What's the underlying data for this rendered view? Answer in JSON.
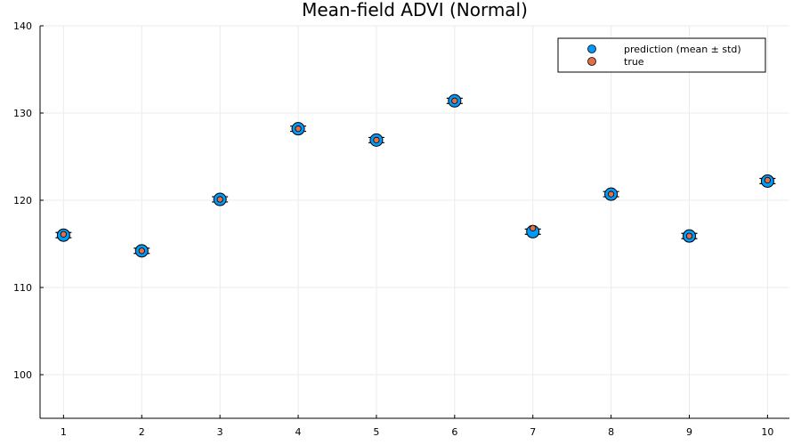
{
  "chart_data": {
    "type": "scatter",
    "title": "Mean-field ADVI (Normal)",
    "xlabel": "",
    "ylabel": "",
    "xlim": [
      0.7,
      10.28
    ],
    "ylim": [
      95,
      140
    ],
    "xticks": [
      1,
      2,
      3,
      4,
      5,
      6,
      7,
      8,
      9,
      10
    ],
    "yticks": [
      100,
      110,
      120,
      130,
      140
    ],
    "grid": true,
    "legend_position": "top-right",
    "series": [
      {
        "name": "prediction (mean ± std)",
        "color": "#009af9",
        "marker": "circle",
        "error_bars": true,
        "x": [
          1,
          2,
          3,
          4,
          5,
          6,
          7,
          8,
          9,
          10
        ],
        "y": [
          116.0,
          114.2,
          120.1,
          128.2,
          126.9,
          131.4,
          116.4,
          120.7,
          115.9,
          122.2
        ],
        "std": [
          0.3,
          0.3,
          0.3,
          0.3,
          0.3,
          0.3,
          0.3,
          0.3,
          0.3,
          0.3
        ]
      },
      {
        "name": "true",
        "color": "#e26f46",
        "marker": "circle",
        "x": [
          1,
          2,
          3,
          4,
          5,
          6,
          7,
          8,
          9,
          10
        ],
        "y": [
          116.1,
          114.2,
          120.1,
          128.2,
          126.9,
          131.4,
          116.8,
          120.7,
          115.9,
          122.3
        ]
      }
    ]
  }
}
